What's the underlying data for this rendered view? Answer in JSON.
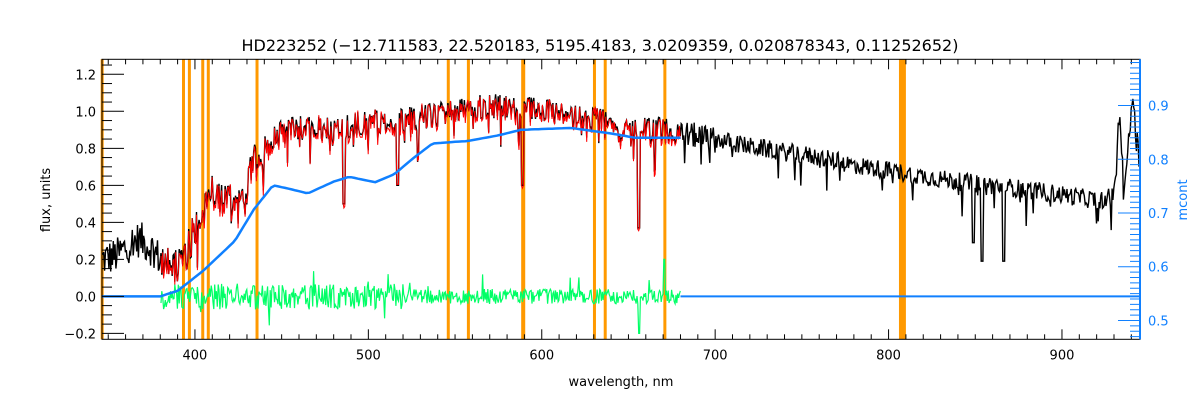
{
  "chart_data": {
    "type": "line",
    "title": "HD223252   (−12.711583, 22.520183, 5195.4183, 3.0209359, 0.020878343, 0.11252652)",
    "xlabel": "wavelength, nm",
    "ylabel": "flux, units",
    "y2label": "mcont",
    "xlim": [
      346.4,
      945
    ],
    "ylim": [
      -0.232,
      1.281
    ],
    "y2lim": [
      0.465,
      0.986
    ],
    "grid": false,
    "xticks": [
      "400",
      "500",
      "600",
      "700",
      "800",
      "900"
    ],
    "yticks": [
      "−0.2",
      "0.0",
      "0.2",
      "0.4",
      "0.6",
      "0.8",
      "1.0",
      "1.2"
    ],
    "y2ticks": [
      "0.5",
      "0.6",
      "0.7",
      "0.8",
      "0.9"
    ],
    "colors": {
      "observed": "#000000",
      "model": "#ff0000",
      "residual": "#00ff66",
      "continuum": "#1080ff",
      "mask": "#ff9900"
    },
    "mask_lines_nm": [
      346.5,
      393.4,
      396.8,
      404.5,
      407.7,
      435.8,
      546.1,
      557.7,
      589.0,
      589.6,
      630.4,
      636.6,
      671.0,
      [
        806,
        810
      ]
    ],
    "series": [
      {
        "name": "observed flux",
        "color": "#000000",
        "envelope": [
          [
            346,
            0.22
          ],
          [
            355,
            0.24
          ],
          [
            362,
            0.3
          ],
          [
            368,
            0.33
          ],
          [
            375,
            0.28
          ],
          [
            380,
            0.22
          ],
          [
            388,
            0.16
          ],
          [
            395,
            0.25
          ],
          [
            402,
            0.45
          ],
          [
            410,
            0.58
          ],
          [
            420,
            0.55
          ],
          [
            428,
            0.5
          ],
          [
            433,
            0.75
          ],
          [
            440,
            0.82
          ],
          [
            450,
            0.9
          ],
          [
            460,
            0.93
          ],
          [
            475,
            0.92
          ],
          [
            490,
            0.94
          ],
          [
            510,
            0.96
          ],
          [
            530,
            0.98
          ],
          [
            550,
            1.02
          ],
          [
            570,
            1.04
          ],
          [
            590,
            1.03
          ],
          [
            610,
            1.0
          ],
          [
            630,
            0.97
          ],
          [
            650,
            0.93
          ],
          [
            670,
            0.91
          ],
          [
            690,
            0.88
          ],
          [
            700,
            0.86
          ],
          [
            720,
            0.82
          ],
          [
            740,
            0.79
          ],
          [
            755,
            0.77
          ],
          [
            765,
            0.75
          ],
          [
            780,
            0.72
          ],
          [
            800,
            0.69
          ],
          [
            816,
            0.665
          ],
          [
            840,
            0.63
          ],
          [
            860,
            0.61
          ],
          [
            877,
            0.59
          ],
          [
            900,
            0.56
          ],
          [
            920,
            0.53
          ],
          [
            930,
            0.55
          ],
          [
            933,
            1.0
          ],
          [
            936,
            0.6
          ],
          [
            941,
            1.1
          ],
          [
            945,
            0.7
          ]
        ],
        "absorption": [
          [
            486,
            0.5
          ],
          [
            517,
            0.6
          ],
          [
            589,
            0.6
          ],
          [
            656,
            0.37
          ],
          [
            849,
            0.29
          ],
          [
            854,
            0.19
          ],
          [
            866.5,
            0.19
          ]
        ]
      },
      {
        "name": "model flux",
        "color": "#ff0000",
        "range": [
          380,
          680
        ]
      },
      {
        "name": "residuals",
        "color": "#00ff66",
        "range": [
          380,
          680
        ]
      },
      {
        "name": "continuum",
        "color": "#1080ff",
        "points": [
          [
            346,
            0
          ],
          [
            380,
            0
          ],
          [
            390,
            0.03
          ],
          [
            405,
            0.14
          ],
          [
            423,
            0.3
          ],
          [
            434,
            0.47
          ],
          [
            445,
            0.6
          ],
          [
            455,
            0.58
          ],
          [
            465,
            0.556
          ],
          [
            480,
            0.62
          ],
          [
            489,
            0.646
          ],
          [
            497,
            0.63
          ],
          [
            504,
            0.617
          ],
          [
            515,
            0.66
          ],
          [
            525,
            0.74
          ],
          [
            537,
            0.826
          ],
          [
            550,
            0.835
          ],
          [
            557,
            0.839
          ],
          [
            575,
            0.87
          ],
          [
            588,
            0.9
          ],
          [
            617,
            0.91
          ],
          [
            640,
            0.88
          ],
          [
            654,
            0.857
          ],
          [
            680,
            0.857
          ]
        ],
        "baseline": [
          [
            680,
            0
          ],
          [
            945,
            0
          ]
        ]
      }
    ]
  }
}
